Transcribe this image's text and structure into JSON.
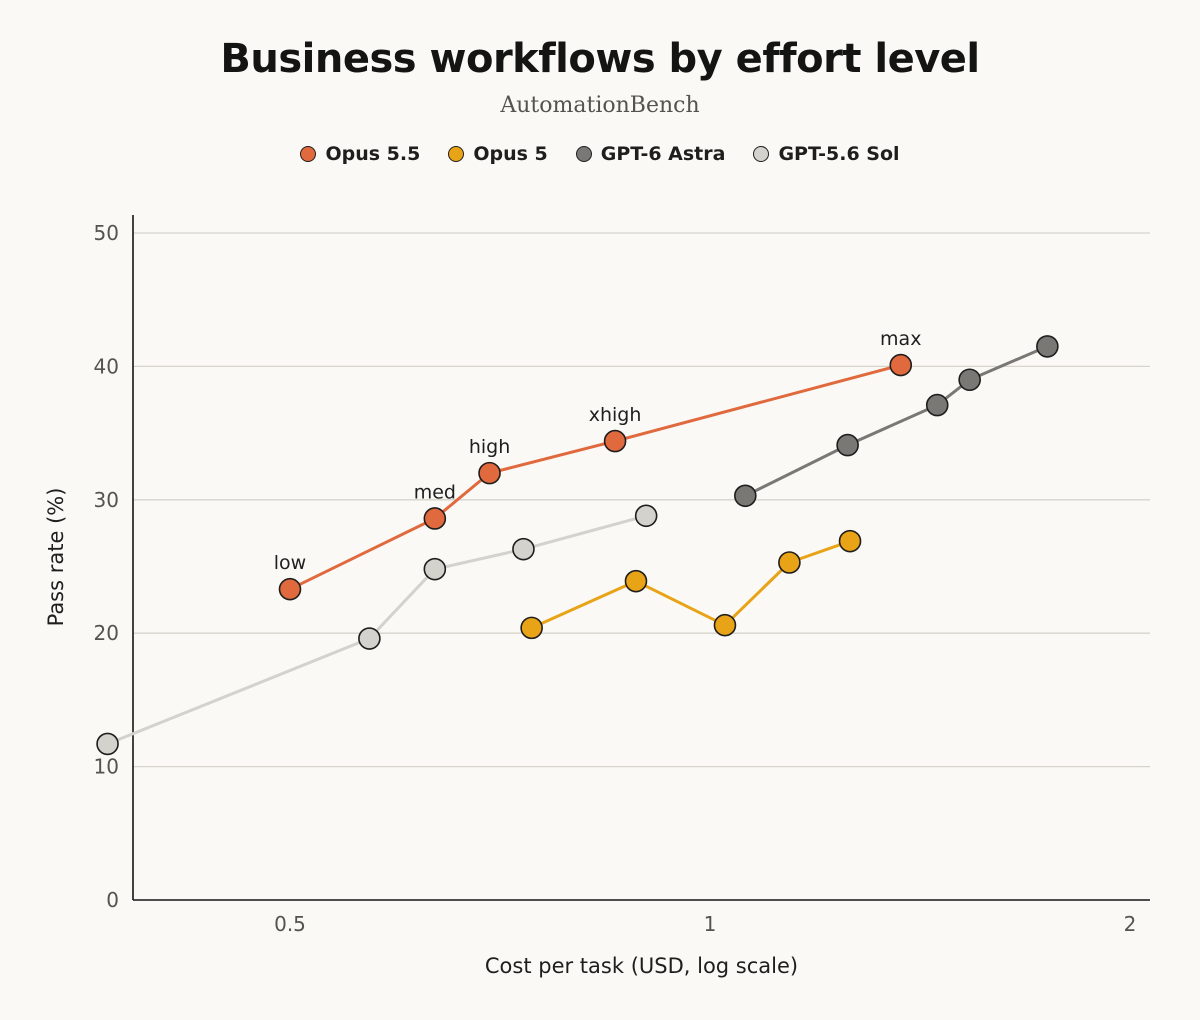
{
  "chart_data": {
    "type": "line",
    "title": "Business workflows by effort level",
    "subtitle": "AutomationBench",
    "xlabel": "Cost per task (USD, log scale)",
    "ylabel": "Pass rate (%)",
    "x_scale": "log",
    "xlim": [
      0.4,
      2.1
    ],
    "ylim": [
      0,
      52
    ],
    "x_ticks": [
      0.5,
      1,
      2
    ],
    "x_tick_labels": [
      "0.5",
      "1",
      "2"
    ],
    "y_ticks": [
      0,
      10,
      20,
      30,
      40,
      50
    ],
    "y_tick_labels": [
      "0",
      "10",
      "20",
      "30",
      "40",
      "50"
    ],
    "grid": "horizontal",
    "legend_position": "top-center",
    "series": [
      {
        "name": "Opus 5.5",
        "color": "#e0693e",
        "points": [
          {
            "x": 0.5,
            "y": 23.3,
            "label": "low"
          },
          {
            "x": 0.635,
            "y": 28.6,
            "label": "med"
          },
          {
            "x": 0.695,
            "y": 32.0,
            "label": "high"
          },
          {
            "x": 0.855,
            "y": 34.4,
            "label": "xhigh"
          },
          {
            "x": 1.37,
            "y": 40.1,
            "label": "max"
          }
        ]
      },
      {
        "name": "Opus 5",
        "color": "#e8a317",
        "points": [
          {
            "x": 0.745,
            "y": 20.4
          },
          {
            "x": 0.885,
            "y": 23.9
          },
          {
            "x": 1.025,
            "y": 20.6
          },
          {
            "x": 1.14,
            "y": 25.3
          },
          {
            "x": 1.26,
            "y": 26.9
          }
        ]
      },
      {
        "name": "GPT-6 Astra",
        "color": "#7a7875",
        "points": [
          {
            "x": 1.06,
            "y": 30.3
          },
          {
            "x": 1.255,
            "y": 34.1
          },
          {
            "x": 1.455,
            "y": 37.1
          },
          {
            "x": 1.535,
            "y": 39.0
          },
          {
            "x": 1.745,
            "y": 41.5
          }
        ]
      },
      {
        "name": "GPT-5.6 Sol",
        "color": "#d4d2cc",
        "points": [
          {
            "x": 0.37,
            "y": 11.7
          },
          {
            "x": 0.57,
            "y": 19.6
          },
          {
            "x": 0.635,
            "y": 24.8
          },
          {
            "x": 0.735,
            "y": 26.3
          },
          {
            "x": 0.9,
            "y": 28.8
          }
        ]
      }
    ]
  }
}
